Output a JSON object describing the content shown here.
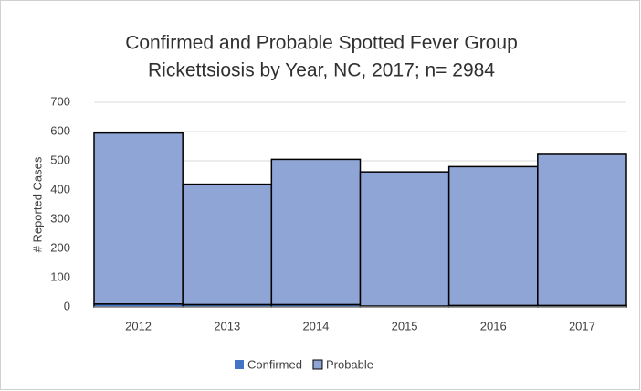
{
  "chart_data": {
    "type": "stacked_bar",
    "title": [
      "Confirmed and Probable Spotted Fever Group",
      "Rickettsiosis by Year, NC, 2017; n= 2984"
    ],
    "y_label": "# Reported Cases",
    "categories": [
      "2012",
      "2013",
      "2014",
      "2015",
      "2016",
      "2017"
    ],
    "series": [
      {
        "name": "Confirmed",
        "color": "#4472c4",
        "values": [
          10,
          8,
          8,
          3,
          5,
          5
        ]
      },
      {
        "name": "Probable",
        "color": "#8fa5d6",
        "values": [
          585,
          412,
          497,
          459,
          475,
          517
        ]
      }
    ],
    "ylim": [
      0,
      700
    ],
    "yticks": [
      0,
      100,
      200,
      300,
      400,
      500,
      600,
      700
    ],
    "grid": true,
    "legend": "bottom"
  }
}
